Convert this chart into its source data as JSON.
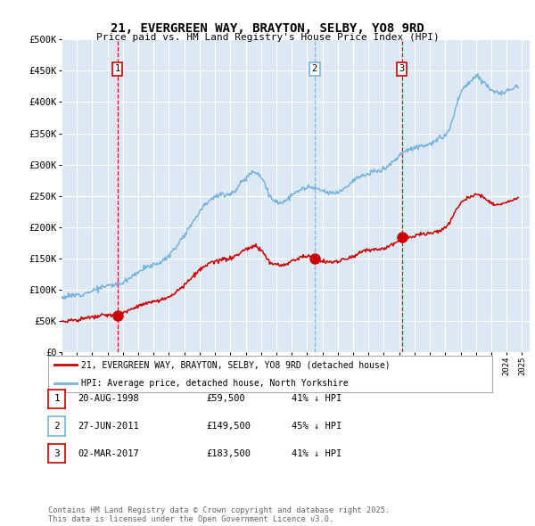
{
  "title": "21, EVERGREEN WAY, BRAYTON, SELBY, YO8 9RD",
  "subtitle": "Price paid vs. HM Land Registry's House Price Index (HPI)",
  "background_color": "#dce9f5",
  "plot_bg_color": "#dce9f5",
  "sale_dates_num": [
    1998.64,
    2011.49,
    2017.17
  ],
  "sale_prices": [
    59500,
    149500,
    183500
  ],
  "sale_labels": [
    "1",
    "2",
    "3"
  ],
  "legend_entries": [
    "21, EVERGREEN WAY, BRAYTON, SELBY, YO8 9RD (detached house)",
    "HPI: Average price, detached house, North Yorkshire"
  ],
  "table_rows": [
    [
      "1",
      "20-AUG-1998",
      "£59,500",
      "41% ↓ HPI"
    ],
    [
      "2",
      "27-JUN-2011",
      "£149,500",
      "45% ↓ HPI"
    ],
    [
      "3",
      "02-MAR-2017",
      "£183,500",
      "41% ↓ HPI"
    ]
  ],
  "footnote": "Contains HM Land Registry data © Crown copyright and database right 2025.\nThis data is licensed under the Open Government Licence v3.0.",
  "hpi_line_color": "#7ab3d9",
  "price_line_color": "#cc0000",
  "vline_colors": [
    "#cc0000",
    "#7ab3d9",
    "#cc0000"
  ],
  "ylim": [
    0,
    500000
  ],
  "xlim_start": 1995.0,
  "xlim_end": 2025.5,
  "hpi_data": {
    "years": [
      1995.0,
      1995.25,
      1995.5,
      1995.75,
      1996.0,
      1996.25,
      1996.5,
      1996.75,
      1997.0,
      1997.25,
      1997.5,
      1997.75,
      1998.0,
      1998.25,
      1998.5,
      1998.75,
      1999.0,
      1999.25,
      1999.5,
      1999.75,
      2000.0,
      2000.25,
      2000.5,
      2000.75,
      2001.0,
      2001.25,
      2001.5,
      2001.75,
      2002.0,
      2002.25,
      2002.5,
      2002.75,
      2003.0,
      2003.25,
      2003.5,
      2003.75,
      2004.0,
      2004.25,
      2004.5,
      2004.75,
      2005.0,
      2005.25,
      2005.5,
      2005.75,
      2006.0,
      2006.25,
      2006.5,
      2006.75,
      2007.0,
      2007.25,
      2007.5,
      2007.75,
      2008.0,
      2008.25,
      2008.5,
      2008.75,
      2009.0,
      2009.25,
      2009.5,
      2009.75,
      2010.0,
      2010.25,
      2010.5,
      2010.75,
      2011.0,
      2011.25,
      2011.5,
      2011.75,
      2012.0,
      2012.25,
      2012.5,
      2012.75,
      2013.0,
      2013.25,
      2013.5,
      2013.75,
      2014.0,
      2014.25,
      2014.5,
      2014.75,
      2015.0,
      2015.25,
      2015.5,
      2015.75,
      2016.0,
      2016.25,
      2016.5,
      2016.75,
      2017.0,
      2017.25,
      2017.5,
      2017.75,
      2018.0,
      2018.25,
      2018.5,
      2018.75,
      2019.0,
      2019.25,
      2019.5,
      2019.75,
      2020.0,
      2020.25,
      2020.5,
      2020.75,
      2021.0,
      2021.25,
      2021.5,
      2021.75,
      2022.0,
      2022.25,
      2022.5,
      2022.75,
      2023.0,
      2023.25,
      2023.5,
      2023.75,
      2024.0,
      2024.25,
      2024.5,
      2024.75
    ],
    "values": [
      88000,
      89000,
      90000,
      91000,
      92000,
      93500,
      95000,
      97000,
      99000,
      101000,
      103000,
      105000,
      107000,
      108000,
      109000,
      110000,
      113000,
      117000,
      121000,
      126000,
      130000,
      133000,
      136000,
      138000,
      140000,
      143000,
      146000,
      150000,
      156000,
      164000,
      172000,
      181000,
      190000,
      200000,
      210000,
      220000,
      230000,
      238000,
      244000,
      249000,
      252000,
      254000,
      255000,
      256000,
      258000,
      263000,
      269000,
      276000,
      283000,
      289000,
      292000,
      290000,
      283000,
      272000,
      256000,
      246000,
      244000,
      243000,
      244000,
      248000,
      253000,
      258000,
      263000,
      265000,
      266000,
      267000,
      267000,
      265000,
      263000,
      261000,
      260000,
      260000,
      261000,
      264000,
      268000,
      273000,
      278000,
      282000,
      285000,
      287000,
      289000,
      291000,
      293000,
      295000,
      298000,
      302000,
      307000,
      312000,
      317000,
      321000,
      325000,
      327000,
      329000,
      331000,
      332000,
      333000,
      334000,
      336000,
      339000,
      343000,
      348000,
      356000,
      375000,
      398000,
      415000,
      425000,
      430000,
      435000,
      440000,
      438000,
      432000,
      425000,
      418000,
      415000,
      412000,
      413000,
      416000,
      420000,
      423000,
      427000
    ]
  },
  "price_data": {
    "years": [
      1995.0,
      1995.25,
      1995.5,
      1995.75,
      1996.0,
      1996.25,
      1996.5,
      1996.75,
      1997.0,
      1997.25,
      1997.5,
      1997.75,
      1998.0,
      1998.25,
      1998.5,
      1998.75,
      1999.0,
      1999.25,
      1999.5,
      1999.75,
      2000.0,
      2000.25,
      2000.5,
      2000.75,
      2001.0,
      2001.25,
      2001.5,
      2001.75,
      2002.0,
      2002.25,
      2002.5,
      2002.75,
      2003.0,
      2003.25,
      2003.5,
      2003.75,
      2004.0,
      2004.25,
      2004.5,
      2004.75,
      2005.0,
      2005.25,
      2005.5,
      2005.75,
      2006.0,
      2006.25,
      2006.5,
      2006.75,
      2007.0,
      2007.25,
      2007.5,
      2007.75,
      2008.0,
      2008.25,
      2008.5,
      2008.75,
      2009.0,
      2009.25,
      2009.5,
      2009.75,
      2010.0,
      2010.25,
      2010.5,
      2010.75,
      2011.0,
      2011.25,
      2011.5,
      2011.75,
      2012.0,
      2012.25,
      2012.5,
      2012.75,
      2013.0,
      2013.25,
      2013.5,
      2013.75,
      2014.0,
      2014.25,
      2014.5,
      2014.75,
      2015.0,
      2015.25,
      2015.5,
      2015.75,
      2016.0,
      2016.25,
      2016.5,
      2016.75,
      2017.0,
      2017.25,
      2017.5,
      2017.75,
      2018.0,
      2018.25,
      2018.5,
      2018.75,
      2019.0,
      2019.25,
      2019.5,
      2019.75,
      2020.0,
      2020.25,
      2020.5,
      2020.75,
      2021.0,
      2021.25,
      2021.5,
      2021.75,
      2022.0,
      2022.25,
      2022.5,
      2022.75,
      2023.0,
      2023.25,
      2023.5,
      2023.75,
      2024.0,
      2024.25,
      2024.5,
      2024.75
    ],
    "values": [
      50000,
      50500,
      51000,
      51500,
      52000,
      53000,
      54000,
      55000,
      56000,
      57000,
      58000,
      59000,
      59500,
      59500,
      60000,
      61000,
      63000,
      66000,
      69000,
      72000,
      75000,
      77000,
      79000,
      80000,
      81000,
      83000,
      85000,
      87000,
      91000,
      95000,
      100000,
      105000,
      110000,
      116000,
      122000,
      128000,
      134000,
      138000,
      142000,
      145000,
      147000,
      149000,
      150000,
      151000,
      152000,
      154000,
      158000,
      163000,
      167000,
      170000,
      172000,
      171000,
      166000,
      158000,
      149000,
      143000,
      142000,
      141000,
      142000,
      144000,
      148000,
      151000,
      154000,
      155000,
      156000,
      155000,
      149500,
      149000,
      148000,
      147000,
      147000,
      147000,
      148000,
      150000,
      152000,
      154000,
      157000,
      160000,
      163000,
      165000,
      166000,
      167000,
      168000,
      169000,
      171000,
      173000,
      176000,
      179000,
      182000,
      183500,
      186000,
      188000,
      190000,
      192000,
      193000,
      194000,
      195000,
      196000,
      198000,
      200000,
      204000,
      210000,
      222000,
      235000,
      244000,
      250000,
      252000,
      255000,
      258000,
      257000,
      253000,
      249000,
      245000,
      242000,
      241000,
      242000,
      244000,
      246000,
      248000,
      250000
    ]
  }
}
